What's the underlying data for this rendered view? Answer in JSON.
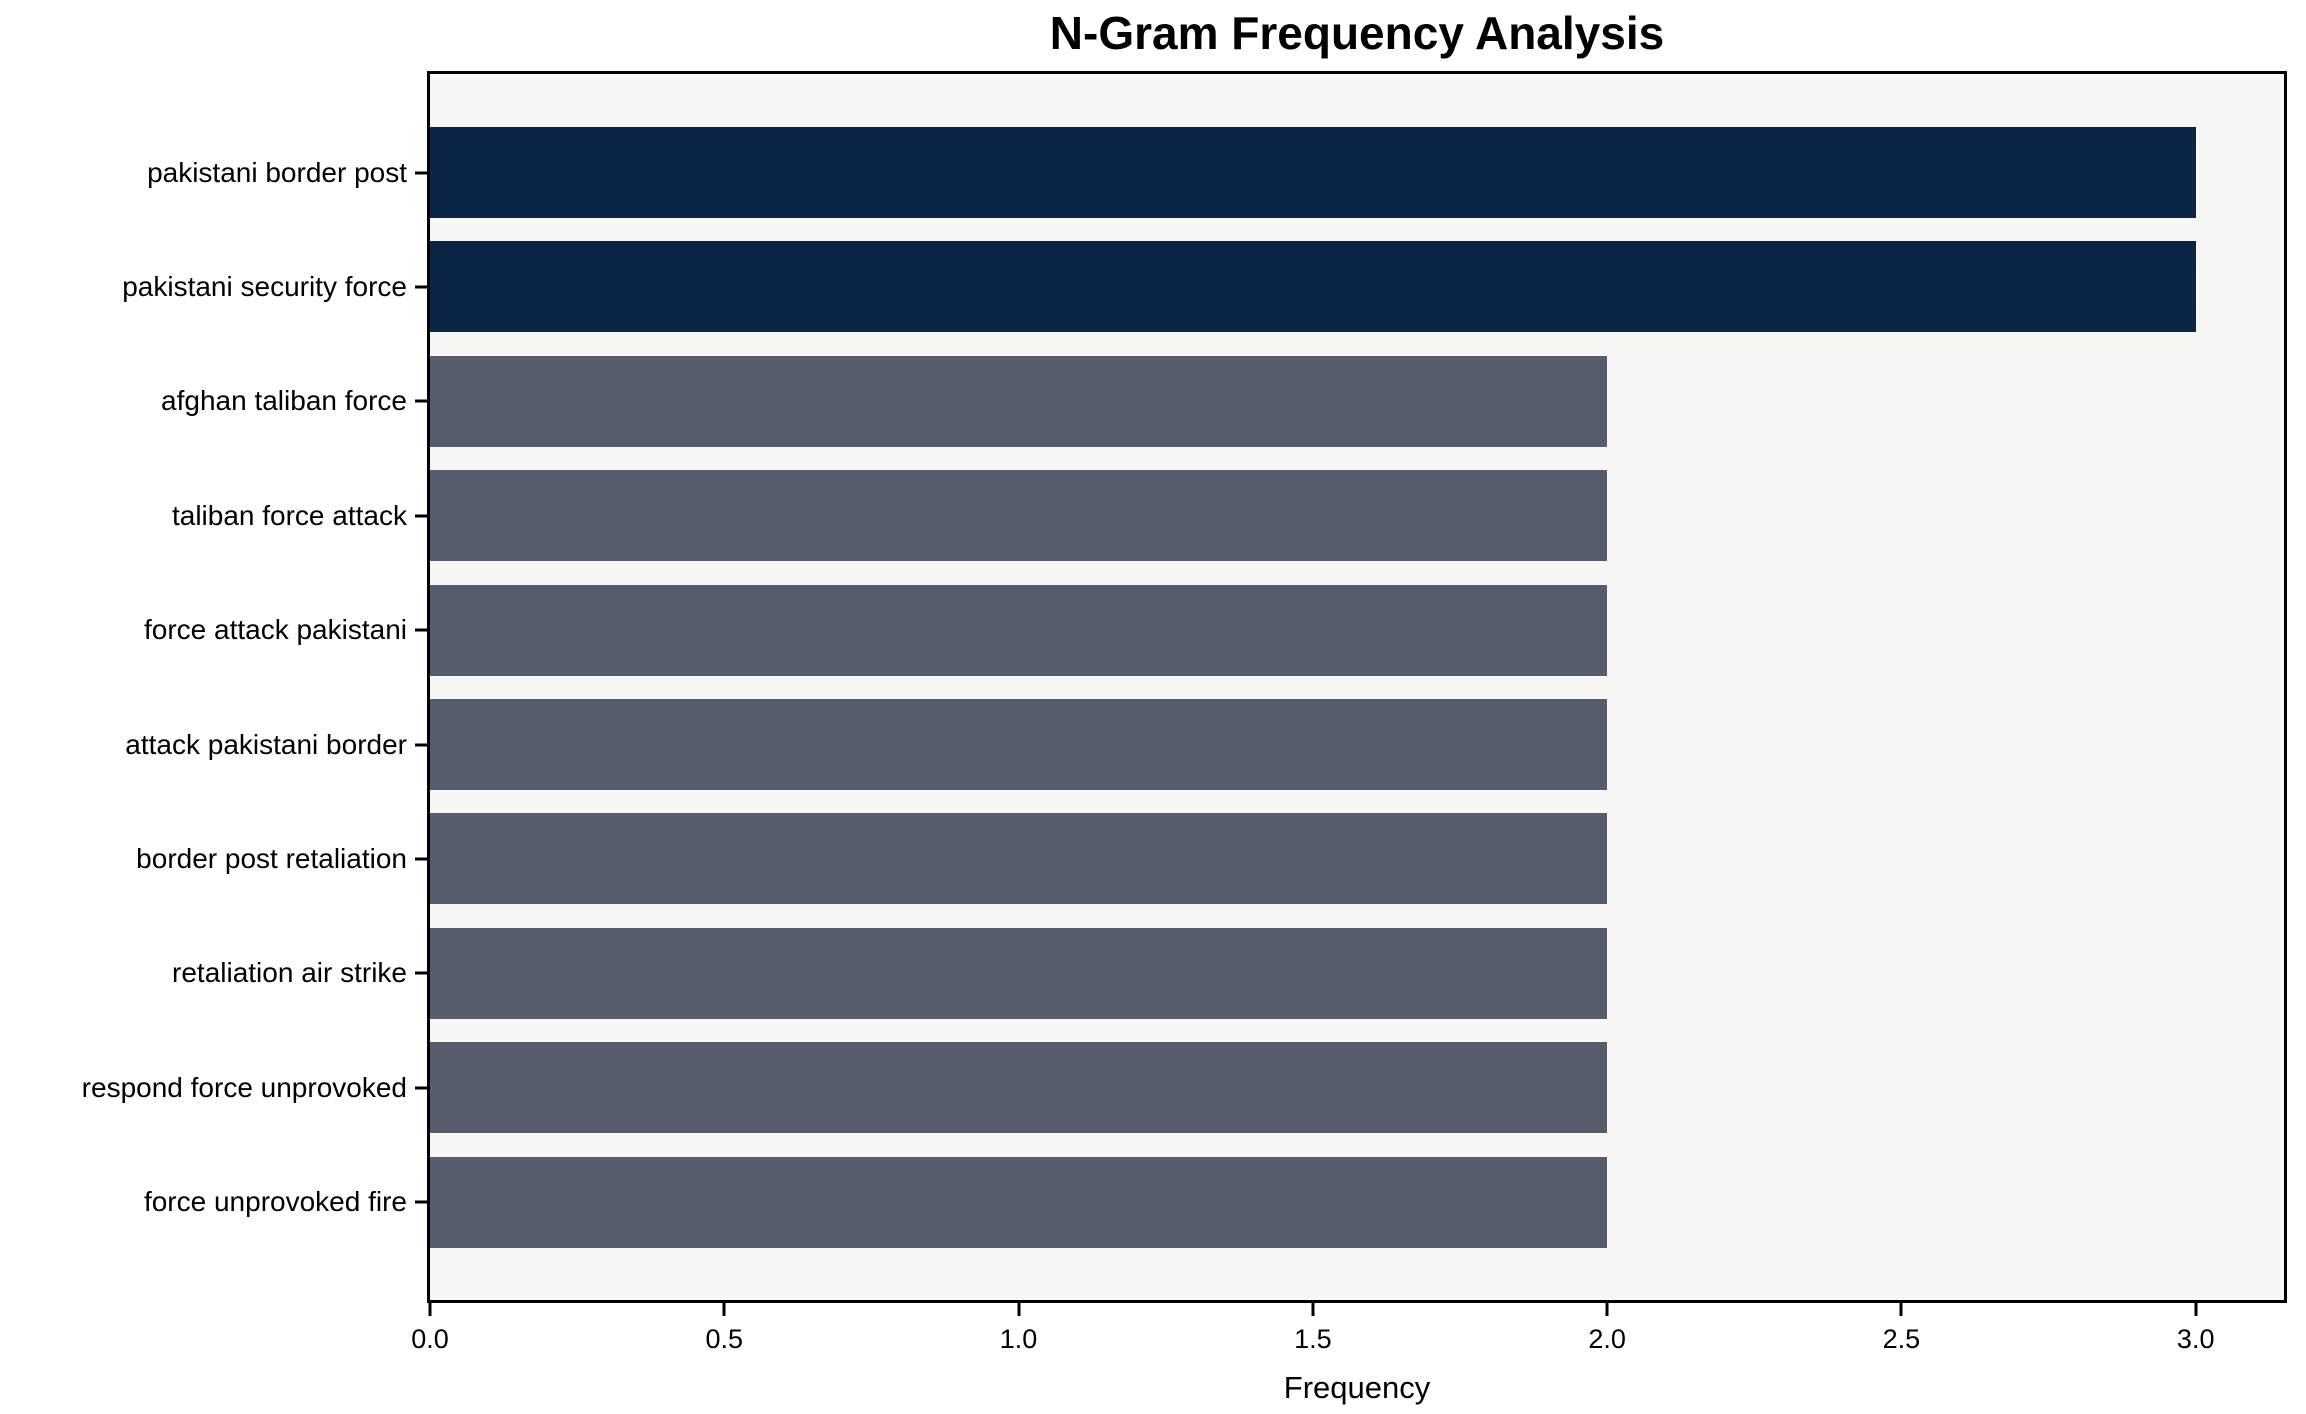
{
  "chart_data": {
    "type": "bar",
    "orientation": "horizontal",
    "title": "N-Gram Frequency Analysis",
    "xlabel": "Frequency",
    "ylabel": "",
    "categories": [
      "pakistani border post",
      "pakistani security force",
      "afghan taliban force",
      "taliban force attack",
      "force attack pakistani",
      "attack pakistani border",
      "border post retaliation",
      "retaliation air strike",
      "respond force unprovoked",
      "force unprovoked fire"
    ],
    "values": [
      3,
      3,
      2,
      2,
      2,
      2,
      2,
      2,
      2,
      2
    ],
    "bar_colors": [
      "#0a2545",
      "#0a2545",
      "#565c6b",
      "#565c6b",
      "#565c6b",
      "#565c6b",
      "#565c6b",
      "#565c6b",
      "#565c6b",
      "#565c6b"
    ],
    "xlim": [
      0,
      3.15
    ],
    "xtick_values": [
      0,
      0.5,
      1,
      1.5,
      2,
      2.5,
      3
    ],
    "xtick_labels": [
      "0.0",
      "0.5",
      "1.0",
      "1.5",
      "2.0",
      "2.5",
      "3.0"
    ],
    "grid": false,
    "legend_position": "none",
    "colors": {
      "highlight": "#0a2545",
      "default": "#565c6b",
      "plot_bg": "#f7f7f6",
      "figure_bg": "#ffffff",
      "axis": "#000000",
      "text": "#000000"
    }
  }
}
